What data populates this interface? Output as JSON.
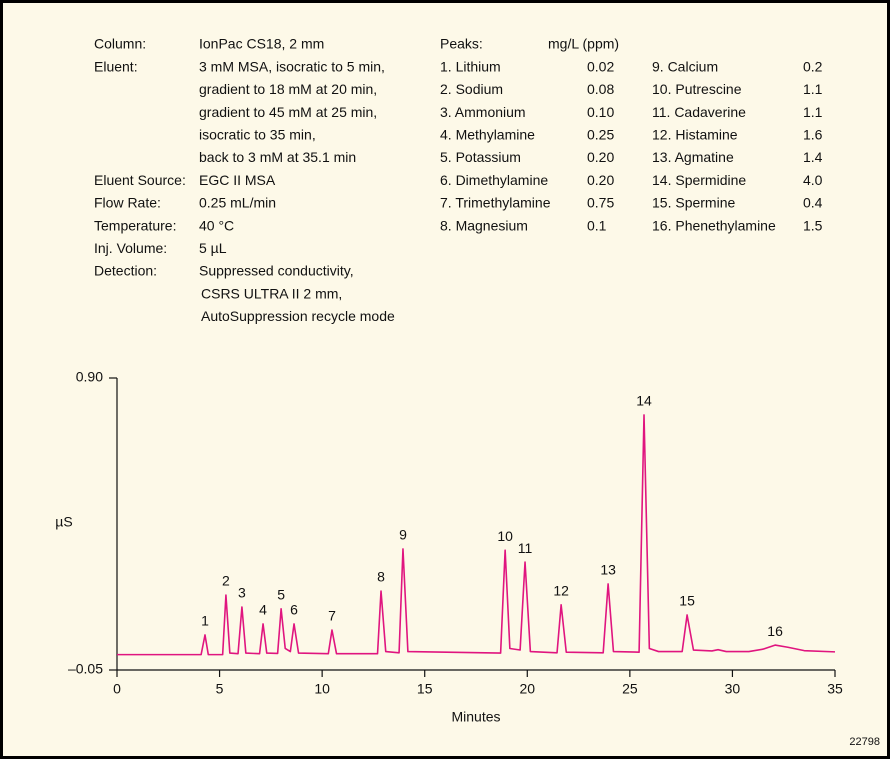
{
  "conditions": [
    {
      "label": "Column:",
      "lines": [
        "IonPac CS18, 2 mm"
      ]
    },
    {
      "label": "Eluent:",
      "lines": [
        "3 mM MSA, isocratic to 5 min,",
        "gradient to 18 mM at 20 min,",
        "gradient to 45 mM at 25 min,",
        "isocratic to 35 min,",
        "back to 3 mM at 35.1 min"
      ]
    },
    {
      "label": "Eluent Source:",
      "lines": [
        "EGC II MSA"
      ]
    },
    {
      "label": "Flow Rate:",
      "lines": [
        "0.25 mL/min"
      ]
    },
    {
      "label": "Temperature:",
      "lines": [
        "40 °C"
      ]
    },
    {
      "label": "Inj. Volume:",
      "lines": [
        "5 µL"
      ]
    },
    {
      "label": "Detection:",
      "lines": [
        "Suppressed conductivity,",
        "CSRS ULTRA II 2 mm,",
        "AutoSuppression recycle mode"
      ]
    }
  ],
  "peaks_table": {
    "header": [
      "Peaks:",
      "mg/L (ppm)"
    ],
    "columns": [
      [
        [
          "1. Lithium",
          "0.02"
        ],
        [
          "2. Sodium",
          "0.08"
        ],
        [
          "3. Ammonium",
          "0.10"
        ],
        [
          "4. Methylamine",
          "0.25"
        ],
        [
          "5. Potassium",
          "0.20"
        ],
        [
          "6. Dimethylamine",
          "0.20"
        ],
        [
          "7. Trimethylamine",
          "0.75"
        ],
        [
          "8. Magnesium",
          "0.1"
        ]
      ],
      [
        [
          "9. Calcium",
          "0.2"
        ],
        [
          "10. Putrescine",
          "1.1"
        ],
        [
          "11. Cadaverine",
          "1.1"
        ],
        [
          "12. Histamine",
          "1.6"
        ],
        [
          "13. Agmatine",
          "1.4"
        ],
        [
          "14. Spermidine",
          "4.0"
        ],
        [
          "15. Spermine",
          "0.4"
        ],
        [
          "16. Phenethylamine",
          "1.5"
        ]
      ]
    ]
  },
  "figure_id": "22798",
  "chart_data": {
    "type": "line",
    "x_label": "Minutes",
    "y_label": "µS",
    "xlim": [
      0,
      35
    ],
    "xticks": [
      0,
      5,
      10,
      15,
      20,
      25,
      30,
      35
    ],
    "ylim": [
      -0.05,
      0.9
    ],
    "yticks": [
      {
        "value": -0.05,
        "label": "–0.05"
      },
      {
        "value": 0.9,
        "label": "0.90"
      }
    ],
    "series": [
      {
        "color": "#e0157f",
        "x": [
          0,
          4.1,
          4.29,
          4.45,
          5.15,
          5.31,
          5.5,
          5.9,
          6.09,
          6.28,
          6.95,
          7.12,
          7.3,
          7.83,
          8.0,
          8.2,
          8.45,
          8.63,
          8.85,
          10.3,
          10.48,
          10.7,
          12.7,
          12.87,
          13.1,
          13.75,
          13.94,
          14.18,
          18.7,
          18.92,
          19.15,
          19.65,
          19.89,
          20.15,
          21.45,
          21.65,
          21.9,
          23.7,
          23.94,
          24.2,
          25.45,
          25.69,
          25.95,
          26.4,
          27.55,
          27.79,
          28.1,
          29.0,
          29.3,
          29.7,
          30.8,
          31.5,
          32.08,
          32.7,
          33.5,
          35
        ],
        "values": [
          0.0,
          0.0,
          0.064,
          0.0,
          0.0,
          0.194,
          0.005,
          0.003,
          0.155,
          0.005,
          0.003,
          0.1,
          0.005,
          0.004,
          0.149,
          0.02,
          0.01,
          0.1,
          0.005,
          0.003,
          0.08,
          0.003,
          0.003,
          0.207,
          0.01,
          0.006,
          0.344,
          0.01,
          0.005,
          0.34,
          0.02,
          0.015,
          0.301,
          0.01,
          0.006,
          0.162,
          0.008,
          0.006,
          0.23,
          0.01,
          0.008,
          0.78,
          0.02,
          0.01,
          0.01,
          0.129,
          0.015,
          0.012,
          0.016,
          0.01,
          0.01,
          0.018,
          0.031,
          0.024,
          0.013,
          0.009
        ]
      }
    ],
    "annotations": [
      {
        "text": "1",
        "x": 4.29,
        "y": 0.064
      },
      {
        "text": "2",
        "x": 5.31,
        "y": 0.194
      },
      {
        "text": "3",
        "x": 6.09,
        "y": 0.155
      },
      {
        "text": "4",
        "x": 7.12,
        "y": 0.1
      },
      {
        "text": "5",
        "x": 8.0,
        "y": 0.149
      },
      {
        "text": "6",
        "x": 8.63,
        "y": 0.1
      },
      {
        "text": "7",
        "x": 10.48,
        "y": 0.08
      },
      {
        "text": "8",
        "x": 12.87,
        "y": 0.207
      },
      {
        "text": "9",
        "x": 13.94,
        "y": 0.344
      },
      {
        "text": "10",
        "x": 18.92,
        "y": 0.34
      },
      {
        "text": "11",
        "x": 19.89,
        "y": 0.301
      },
      {
        "text": "12",
        "x": 21.65,
        "y": 0.162
      },
      {
        "text": "13",
        "x": 23.94,
        "y": 0.23
      },
      {
        "text": "14",
        "x": 25.69,
        "y": 0.78
      },
      {
        "text": "15",
        "x": 27.79,
        "y": 0.129
      },
      {
        "text": "16",
        "x": 32.08,
        "y": 0.031
      }
    ]
  }
}
